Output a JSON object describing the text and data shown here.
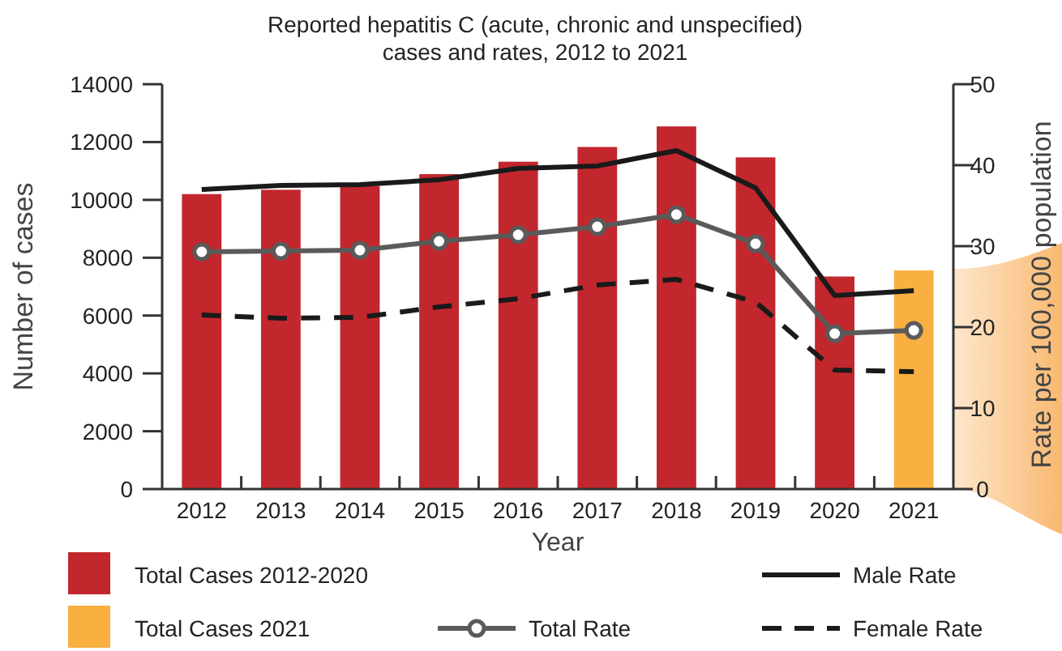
{
  "chart_data": {
    "type": "bar",
    "title": "Reported hepatitis C (acute, chronic and unspecified)\ncases and rates, 2012 to 2021",
    "xlabel": "Year",
    "ylabel": "Number of cases",
    "y2label": "Rate per 100,000 population",
    "categories": [
      "2012",
      "2013",
      "2014",
      "2015",
      "2016",
      "2017",
      "2018",
      "2019",
      "2020",
      "2021"
    ],
    "stacked": true,
    "ylim": [
      0,
      14000
    ],
    "yticks": [
      0,
      2000,
      4000,
      6000,
      8000,
      10000,
      12000,
      14000
    ],
    "y2lim": [
      0,
      50
    ],
    "y2ticks": [
      0,
      10,
      20,
      30,
      40,
      50
    ],
    "legend": "bottom",
    "series": [
      {
        "name": "Total Cases 2012-2020",
        "color": "#c1272d",
        "values": [
          10200,
          10350,
          10480,
          10890,
          11320,
          11830,
          12540,
          11470,
          7350,
          null
        ]
      },
      {
        "name": "Total Cases 2021",
        "color": "#f9b040",
        "values": [
          null,
          null,
          null,
          null,
          null,
          null,
          null,
          null,
          null,
          7560
        ]
      },
      {
        "name": "Male Rate",
        "type": "line",
        "axis": "y2",
        "color": "#1a1a1a",
        "line_style": "solid",
        "marker": "none",
        "values": [
          37.0,
          37.5,
          37.6,
          38.2,
          39.6,
          39.9,
          41.8,
          37.2,
          23.9,
          24.5
        ]
      },
      {
        "name": "Total Rate",
        "type": "line",
        "axis": "y2",
        "color": "#5a5a5a",
        "line_style": "solid",
        "marker": "circle",
        "values": [
          29.3,
          29.4,
          29.5,
          30.6,
          31.4,
          32.4,
          33.9,
          30.3,
          19.2,
          19.6
        ]
      },
      {
        "name": "Female Rate",
        "type": "line",
        "axis": "y2",
        "color": "#1a1a1a",
        "line_style": "dashed",
        "marker": "none",
        "values": [
          21.5,
          21.1,
          21.2,
          22.5,
          23.5,
          25.2,
          25.9,
          23.1,
          14.7,
          14.5
        ]
      }
    ]
  }
}
